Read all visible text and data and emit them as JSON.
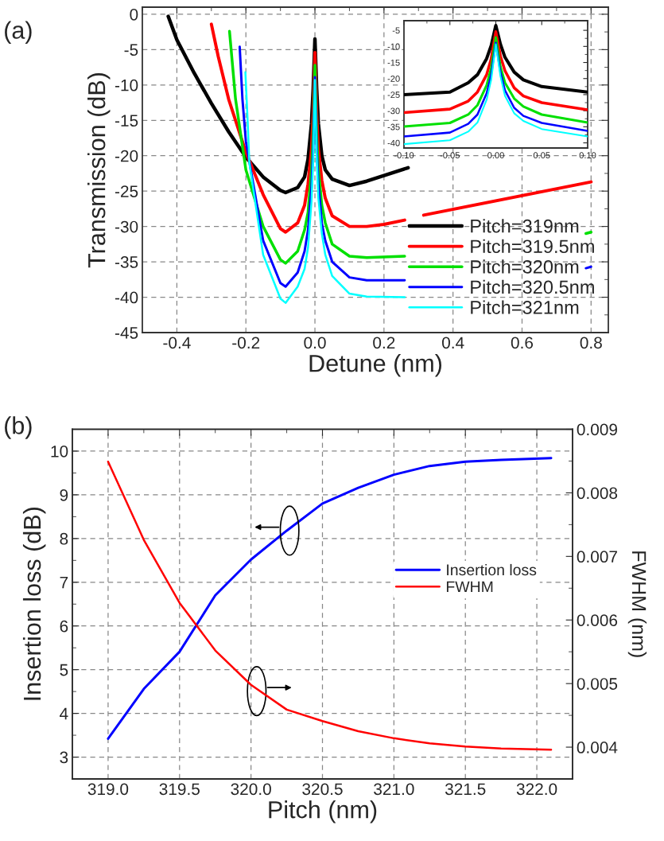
{
  "chart_data": [
    {
      "type": "line",
      "xlabel": "Detune (nm)",
      "ylabel": "Transmission (dB)",
      "annotations": [
        "(a)"
      ],
      "xlim": [
        -0.5,
        0.85
      ],
      "ylim": [
        -45,
        1
      ],
      "xticks": [
        {
          "value": -0.5,
          "label": null
        },
        -0.4,
        {
          "value": -0.3,
          "label": null
        },
        -0.2,
        {
          "value": -0.1,
          "label": null
        },
        {
          "value": 0,
          "label": "0.0"
        },
        {
          "value": 0.1,
          "label": null
        },
        0.2,
        {
          "value": 0.3,
          "label": null
        },
        0.4,
        {
          "value": 0.5,
          "label": null
        },
        0.6,
        {
          "value": 0.7,
          "label": null
        },
        0.8
      ],
      "yticks": [
        0,
        {
          "value": -2.5,
          "label": null
        },
        -5,
        {
          "value": -7.5,
          "label": null
        },
        -10,
        {
          "value": -12.5,
          "label": null
        },
        -15,
        {
          "value": -17.5,
          "label": null
        },
        -20,
        {
          "value": -22.5,
          "label": null
        },
        -25,
        {
          "value": -27.5,
          "label": null
        },
        -30,
        {
          "value": -32.5,
          "label": null
        },
        -35,
        {
          "value": -37.5,
          "label": null
        },
        -40,
        {
          "value": -42.5,
          "label": null
        },
        -45
      ],
      "grid": true,
      "legend": "bottom right",
      "series": [
        {
          "name": "Pitch=319nm",
          "color": "#000000",
          "x": [
            -0.425,
            -0.4,
            -0.35,
            -0.3,
            -0.25,
            -0.2,
            -0.15,
            -0.1,
            -0.085,
            -0.05,
            -0.03,
            -0.02,
            -0.01,
            -0.005,
            0,
            0.005,
            0.01,
            0.02,
            0.03,
            0.05,
            0.1,
            0.15,
            0.2,
            0.27
          ],
          "values": [
            -0.3,
            -3.6,
            -8.3,
            -12.6,
            -16.6,
            -20.2,
            -23,
            -24.9,
            -25.2,
            -24.5,
            -23,
            -20.5,
            -15.5,
            -10.5,
            -3.5,
            -10.5,
            -15.5,
            -20,
            -22,
            -23.3,
            -24.2,
            -23.6,
            -22.8,
            -21.7
          ]
        },
        {
          "name": "Pitch=319.5nm",
          "color": "#ff0000",
          "x": [
            -0.3,
            -0.28,
            -0.25,
            -0.2,
            -0.15,
            -0.1,
            -0.085,
            -0.05,
            -0.03,
            -0.02,
            -0.01,
            -0.005,
            0,
            0.005,
            0.01,
            0.02,
            0.03,
            0.05,
            0.1,
            0.15,
            0.2,
            0.26,
            0.28,
            0.315,
            0.8
          ],
          "values": [
            -1.4,
            -6,
            -12,
            -19.5,
            -25.5,
            -30.3,
            -30.8,
            -29.5,
            -27,
            -24,
            -19,
            -14,
            -5.4,
            -14,
            -19,
            -23.5,
            -26,
            -28.5,
            -30,
            -30,
            -29.7,
            -29.1,
            null,
            -28.4,
            -23.7
          ]
        },
        {
          "name": "Pitch=320nm",
          "color": "#00e000",
          "x": [
            -0.2475,
            -0.23,
            -0.2,
            -0.15,
            -0.1,
            -0.085,
            -0.05,
            -0.03,
            -0.02,
            -0.01,
            -0.005,
            0,
            0.005,
            0.01,
            0.02,
            0.03,
            0.05,
            0.1,
            0.15,
            0.26,
            0.5,
            0.785,
            0.8
          ],
          "values": [
            -2.4,
            -12,
            -22,
            -30,
            -34.7,
            -35.2,
            -33.5,
            -30.5,
            -28,
            -22,
            -17,
            -7.2,
            -17,
            -22,
            -27,
            -29.5,
            -32.5,
            -34.2,
            -34.4,
            -34.2,
            null,
            -31,
            -30.8
          ]
        },
        {
          "name": "Pitch=320.5nm",
          "color": "#0000ff",
          "x": [
            -0.218,
            -0.21,
            -0.2,
            -0.15,
            -0.1,
            -0.085,
            -0.05,
            -0.03,
            -0.02,
            -0.01,
            -0.005,
            0,
            0.005,
            0.01,
            0.02,
            0.03,
            0.05,
            0.1,
            0.15,
            0.26,
            0.5,
            0.785,
            0.8
          ],
          "values": [
            -4.6,
            -12,
            -18,
            -32,
            -38,
            -38.5,
            -36.5,
            -33.5,
            -30.5,
            -24.5,
            -19,
            -8.9,
            -19,
            -24,
            -29.5,
            -32,
            -35,
            -37.2,
            -37.6,
            -37.6,
            null,
            -35.9,
            -35.7
          ]
        },
        {
          "name": "Pitch=321nm",
          "color": "#00ffff",
          "x": [
            -0.2015,
            -0.195,
            -0.19,
            -0.15,
            -0.1,
            -0.085,
            -0.05,
            -0.03,
            -0.02,
            -0.01,
            -0.005,
            0,
            0.005,
            0.01,
            0.02,
            0.03,
            0.05,
            0.1,
            0.15,
            0.26
          ],
          "values": [
            -8.2,
            -15,
            -21,
            -34,
            -40.2,
            -40.8,
            -38.5,
            -36,
            -33,
            -26.5,
            -20.5,
            -9.3,
            -20,
            -26,
            -31,
            -34,
            -37,
            -39.5,
            -39.9,
            -40
          ]
        }
      ]
    },
    {
      "type": "line",
      "xlim": [
        -0.1,
        0.1
      ],
      "ylim": [
        -41.6,
        -2
      ],
      "xticks": [
        {
          "value": -0.1,
          "label": "-0.10"
        },
        {
          "value": -0.075,
          "label": null
        },
        {
          "value": -0.05,
          "label": "-0.05"
        },
        {
          "value": -0.025,
          "label": null
        },
        {
          "value": 0,
          "label": "0.00"
        },
        {
          "value": 0.025,
          "label": null
        },
        {
          "value": 0.05,
          "label": "0.05"
        },
        {
          "value": 0.075,
          "label": null
        },
        {
          "value": 0.1,
          "label": "0.10"
        }
      ],
      "yticks": [
        -5,
        {
          "value": -7.5,
          "label": null
        },
        -10,
        {
          "value": -12.5,
          "label": null
        },
        -15,
        {
          "value": -17.5,
          "label": null
        },
        -20,
        {
          "value": -22.5,
          "label": null
        },
        -25,
        {
          "value": -27.5,
          "label": null
        },
        -30,
        {
          "value": -32.5,
          "label": null
        },
        -35,
        {
          "value": -37.5,
          "label": null
        },
        -40
      ],
      "x": [
        -0.1,
        -0.05,
        -0.03,
        -0.02,
        -0.01,
        -0.005,
        0,
        0.005,
        0.01,
        0.02,
        0.03,
        0.05,
        0.1
      ],
      "series": [
        {
          "color": "#000000",
          "values": [
            -25.0,
            -24.2,
            -21.3,
            -18.8,
            -13.8,
            -9.7,
            -3.5,
            -9.3,
            -13.4,
            -18.0,
            -20.4,
            -22.5,
            -24.2
          ]
        },
        {
          "color": "#ff0000",
          "values": [
            -30.6,
            -29.5,
            -27.0,
            -24.2,
            -18.8,
            -13.8,
            -5.4,
            -13.0,
            -17.6,
            -22.9,
            -25.4,
            -27.5,
            -29.7
          ]
        },
        {
          "color": "#00e000",
          "values": [
            -34.9,
            -33.8,
            -31.2,
            -28.3,
            -22.1,
            -16.7,
            -7.2,
            -16.3,
            -21.3,
            -26.2,
            -28.7,
            -31.2,
            -33.7
          ]
        },
        {
          "color": "#0000ff",
          "values": [
            -38.0,
            -36.8,
            -34.1,
            -31.2,
            -24.6,
            -18.8,
            -8.9,
            -18.0,
            -23.7,
            -29.1,
            -31.6,
            -33.8,
            -36.3
          ]
        },
        {
          "color": "#00ffff",
          "values": [
            -40.4,
            -39.2,
            -36.5,
            -33.7,
            -26.6,
            -20.4,
            -9.3,
            -19.2,
            -25.4,
            -30.8,
            -33.2,
            -35.7,
            -38.0
          ]
        }
      ]
    },
    {
      "type": "line",
      "xlabel": "Pitch (nm)",
      "ylabel": "Insertion loss (dB)",
      "y2label": "FWHM (nm)",
      "annotations": [
        "(b)"
      ],
      "xlim": [
        318.75,
        322.25
      ],
      "ylim": [
        2.5,
        10.5
      ],
      "y2lim": [
        0.0035,
        0.009
      ],
      "xticks": [
        {
          "value": 319,
          "label": "319.0"
        },
        {
          "value": 319.25,
          "label": null
        },
        319.5,
        {
          "value": 319.75,
          "label": null
        },
        {
          "value": 320,
          "label": "320.0"
        },
        {
          "value": 320.25,
          "label": null
        },
        320.5,
        {
          "value": 320.75,
          "label": null
        },
        {
          "value": 321,
          "label": "321.0"
        },
        {
          "value": 321.25,
          "label": null
        },
        321.5,
        {
          "value": 321.75,
          "label": null
        },
        {
          "value": 322,
          "label": "322.0"
        }
      ],
      "yticks": [
        3,
        {
          "value": 3.5,
          "label": null
        },
        4,
        {
          "value": 4.5,
          "label": null
        },
        5,
        {
          "value": 5.5,
          "label": null
        },
        6,
        {
          "value": 6.5,
          "label": null
        },
        7,
        {
          "value": 7.5,
          "label": null
        },
        8,
        {
          "value": 8.5,
          "label": null
        },
        9,
        {
          "value": 9.5,
          "label": null
        },
        10
      ],
      "y2ticks": [
        0.004,
        {
          "value": 0.0045,
          "label": null
        },
        0.005,
        {
          "value": 0.0055,
          "label": null
        },
        0.006,
        {
          "value": 0.0065,
          "label": null
        },
        0.007,
        {
          "value": 0.0075,
          "label": null
        },
        0.008,
        {
          "value": 0.0085,
          "label": null
        },
        0.009
      ],
      "grid": true,
      "legend": "right",
      "x": [
        319.0,
        319.25,
        319.5,
        319.75,
        320.0,
        320.25,
        320.5,
        320.75,
        321.0,
        321.25,
        321.5,
        321.75,
        322.1
      ],
      "series": [
        {
          "name": "Insertion loss",
          "color": "#0000ff",
          "values": [
            3.42,
            4.56,
            5.41,
            6.7,
            7.52,
            8.18,
            8.8,
            9.16,
            9.46,
            9.66,
            9.76,
            9.8,
            9.84
          ]
        },
        {
          "name": "FWHM",
          "color": "#ff0000",
          "axis": "y2",
          "values": [
            0.00849,
            0.00726,
            0.00627,
            0.00552,
            0.00498,
            0.00459,
            0.00441,
            0.00425,
            0.00414,
            0.00406,
            0.00401,
            0.00398,
            0.00396
          ]
        }
      ]
    }
  ]
}
